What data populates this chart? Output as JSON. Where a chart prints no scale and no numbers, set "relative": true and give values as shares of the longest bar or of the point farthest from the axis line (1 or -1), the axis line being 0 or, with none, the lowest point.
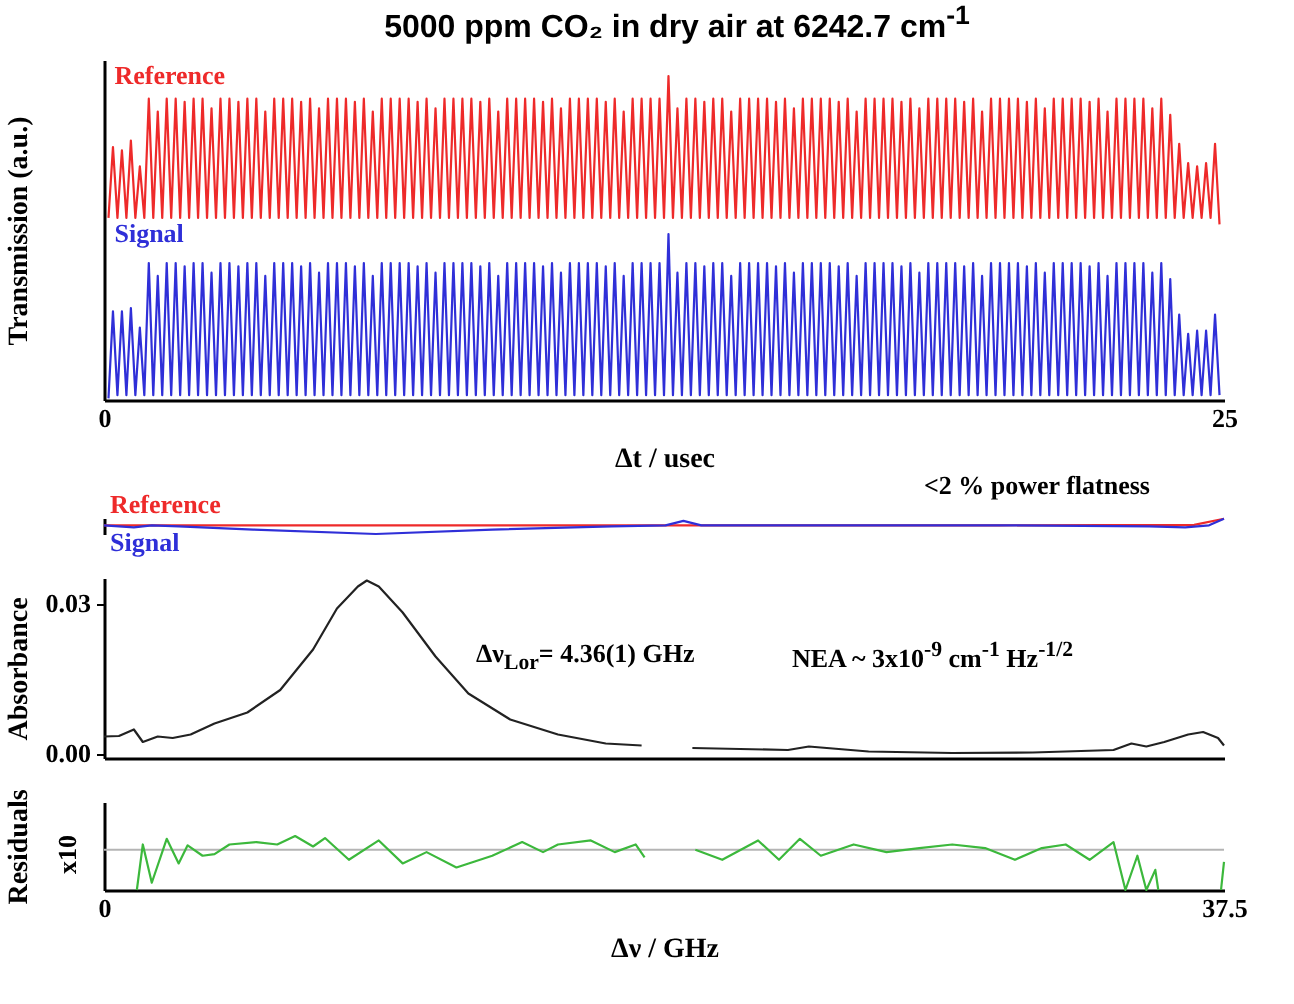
{
  "chart_data": [
    {
      "type": "line",
      "title": "5000 ppm CO₂ in dry air at 6242.7 cm$^{-1}$",
      "xlabel": "Δt / usec",
      "ylabel": "Transmission (a.u.)",
      "relative": true,
      "xlim": [
        0,
        25
      ],
      "xticks": [
        0,
        25
      ],
      "tick_labels": "x",
      "x": [
        0.1,
        0.2,
        0.3,
        0.4,
        0.5,
        0.6,
        0.7,
        0.8,
        0.9,
        1.0,
        1.1,
        1.2,
        1.3,
        1.4,
        1.5,
        1.6,
        1.7,
        1.8,
        1.9,
        2.0,
        2.1,
        2.2,
        2.3,
        2.4,
        2.5,
        2.6,
        2.7,
        2.8,
        2.9,
        3.0,
        3.1,
        3.2,
        3.3,
        3.4,
        3.5,
        3.6,
        3.7,
        3.8,
        3.9,
        4.0,
        4.1,
        4.2,
        4.3,
        4.4,
        4.5,
        4.6,
        4.7,
        4.8,
        4.9,
        5.0,
        5.1,
        5.2,
        5.3,
        5.4,
        5.5,
        5.6,
        5.7,
        5.8,
        5.9,
        6.0,
        6.1,
        6.2,
        6.3,
        6.4,
        6.5,
        6.6,
        6.7,
        6.8,
        6.9,
        7.0,
        7.1,
        7.2,
        7.3,
        7.4,
        7.5,
        7.6,
        7.7,
        7.8,
        7.9,
        8.0,
        8.1,
        8.2,
        8.3,
        8.4,
        8.5,
        8.6,
        8.7,
        8.8,
        8.9,
        9.0,
        9.1,
        9.2,
        9.3,
        9.4,
        9.5,
        9.6,
        9.7,
        9.8,
        9.9,
        10.0,
        10.1,
        10.2,
        10.3,
        10.4,
        10.5,
        10.6,
        10.7,
        10.8,
        10.9,
        11.0,
        11.1,
        11.2,
        11.3,
        11.4,
        11.5,
        11.6,
        11.7,
        11.8,
        11.9,
        12.0,
        12.1,
        12.2,
        12.3,
        12.4,
        12.5,
        12.6,
        12.7,
        12.8,
        12.9,
        13.0,
        13.1,
        13.2,
        13.3,
        13.4,
        13.5,
        13.6,
        13.7,
        13.8,
        13.9,
        14.0,
        14.1,
        14.2,
        14.3,
        14.4,
        14.5,
        14.6,
        14.7,
        14.8,
        14.9,
        15.0,
        15.1,
        15.2,
        15.3,
        15.4,
        15.5,
        15.6,
        15.7,
        15.8,
        15.9,
        16.0,
        16.1,
        16.2,
        16.3,
        16.4,
        16.5,
        16.6,
        16.7,
        16.8,
        16.9,
        17.0,
        17.1,
        17.2,
        17.3,
        17.4,
        17.5,
        17.6,
        17.7,
        17.8,
        17.9,
        18.0,
        18.1,
        18.2,
        18.3,
        18.4,
        18.5,
        18.6,
        18.7,
        18.8,
        18.9,
        19.0,
        19.1,
        19.2,
        19.3,
        19.4,
        19.5,
        19.6,
        19.7,
        19.8,
        19.9,
        20.0,
        20.1,
        20.2,
        20.3,
        20.4,
        20.5,
        20.6,
        20.7,
        20.8,
        20.9,
        21.0,
        21.1,
        21.2,
        21.3,
        21.4,
        21.5,
        21.6,
        21.7,
        21.8,
        21.9,
        22.0,
        22.1,
        22.2,
        22.3,
        22.4,
        22.5,
        22.6,
        22.7,
        22.8,
        22.9,
        23.0,
        23.1,
        23.2,
        23.3,
        23.4,
        23.5,
        23.6,
        23.7,
        23.8,
        23.9,
        24.0,
        24.1,
        24.2,
        24.3,
        24.4,
        24.5,
        24.6,
        24.7,
        24.8,
        24.9
      ],
      "series": [
        {
          "name": "Reference",
          "color": "#ee2a2a",
          "values": [
            0.56,
            0.78,
            0.56,
            0.77,
            0.56,
            0.8,
            0.56,
            0.72,
            0.56,
            0.93,
            0.56,
            0.89,
            0.56,
            0.93,
            0.56,
            0.93,
            0.56,
            0.92,
            0.56,
            0.93,
            0.56,
            0.93,
            0.56,
            0.9,
            0.56,
            0.93,
            0.56,
            0.93,
            0.56,
            0.92,
            0.56,
            0.93,
            0.56,
            0.93,
            0.56,
            0.89,
            0.56,
            0.93,
            0.56,
            0.93,
            0.56,
            0.93,
            0.56,
            0.92,
            0.56,
            0.93,
            0.56,
            0.9,
            0.56,
            0.93,
            0.56,
            0.93,
            0.56,
            0.93,
            0.56,
            0.92,
            0.56,
            0.93,
            0.56,
            0.89,
            0.56,
            0.93,
            0.56,
            0.93,
            0.56,
            0.93,
            0.56,
            0.93,
            0.56,
            0.92,
            0.56,
            0.93,
            0.56,
            0.9,
            0.56,
            0.93,
            0.56,
            0.93,
            0.56,
            0.93,
            0.56,
            0.93,
            0.56,
            0.92,
            0.56,
            0.93,
            0.56,
            0.89,
            0.56,
            0.93,
            0.56,
            0.93,
            0.56,
            0.93,
            0.56,
            0.93,
            0.56,
            0.92,
            0.56,
            0.93,
            0.56,
            0.9,
            0.56,
            0.93,
            0.56,
            0.93,
            0.56,
            0.93,
            0.56,
            0.93,
            0.56,
            0.92,
            0.56,
            0.93,
            0.56,
            0.89,
            0.56,
            0.93,
            0.56,
            0.93,
            0.56,
            0.93,
            0.56,
            0.93,
            0.56,
            1.0,
            0.56,
            0.9,
            0.56,
            0.93,
            0.56,
            0.93,
            0.56,
            0.92,
            0.56,
            0.93,
            0.56,
            0.93,
            0.56,
            0.89,
            0.56,
            0.93,
            0.56,
            0.93,
            0.56,
            0.93,
            0.56,
            0.93,
            0.56,
            0.92,
            0.56,
            0.93,
            0.56,
            0.9,
            0.56,
            0.93,
            0.56,
            0.93,
            0.56,
            0.93,
            0.56,
            0.93,
            0.56,
            0.92,
            0.56,
            0.93,
            0.56,
            0.89,
            0.56,
            0.93,
            0.56,
            0.93,
            0.56,
            0.93,
            0.56,
            0.93,
            0.56,
            0.92,
            0.56,
            0.93,
            0.56,
            0.9,
            0.56,
            0.93,
            0.56,
            0.93,
            0.56,
            0.93,
            0.56,
            0.93,
            0.56,
            0.92,
            0.56,
            0.93,
            0.56,
            0.89,
            0.56,
            0.93,
            0.56,
            0.93,
            0.56,
            0.93,
            0.56,
            0.93,
            0.56,
            0.92,
            0.56,
            0.93,
            0.56,
            0.9,
            0.56,
            0.93,
            0.56,
            0.93,
            0.56,
            0.93,
            0.56,
            0.93,
            0.56,
            0.92,
            0.56,
            0.93,
            0.56,
            0.89,
            0.56,
            0.93,
            0.56,
            0.93,
            0.56,
            0.93,
            0.56,
            0.93,
            0.56,
            0.9,
            0.56,
            0.93,
            0.56,
            0.88,
            0.56,
            0.79,
            0.56,
            0.73,
            0.56,
            0.72,
            0.56,
            0.73,
            0.56,
            0.79,
            0.54
          ]
        },
        {
          "name": "Signal",
          "color": "#2f2fd8",
          "values": [
            0.0,
            0.27,
            0.01,
            0.27,
            0.01,
            0.28,
            0.01,
            0.22,
            0.01,
            0.42,
            0.01,
            0.38,
            0.01,
            0.42,
            0.01,
            0.42,
            0.01,
            0.41,
            0.01,
            0.42,
            0.01,
            0.42,
            0.01,
            0.39,
            0.01,
            0.42,
            0.01,
            0.42,
            0.01,
            0.41,
            0.01,
            0.42,
            0.01,
            0.42,
            0.01,
            0.38,
            0.01,
            0.42,
            0.01,
            0.42,
            0.01,
            0.42,
            0.01,
            0.41,
            0.01,
            0.42,
            0.01,
            0.39,
            0.01,
            0.42,
            0.01,
            0.42,
            0.01,
            0.42,
            0.01,
            0.41,
            0.01,
            0.42,
            0.01,
            0.38,
            0.01,
            0.42,
            0.01,
            0.42,
            0.01,
            0.42,
            0.01,
            0.42,
            0.01,
            0.41,
            0.01,
            0.42,
            0.01,
            0.39,
            0.01,
            0.42,
            0.01,
            0.42,
            0.01,
            0.42,
            0.01,
            0.42,
            0.01,
            0.41,
            0.01,
            0.42,
            0.01,
            0.38,
            0.01,
            0.42,
            0.01,
            0.42,
            0.01,
            0.42,
            0.01,
            0.42,
            0.01,
            0.41,
            0.01,
            0.42,
            0.01,
            0.39,
            0.01,
            0.42,
            0.01,
            0.42,
            0.01,
            0.42,
            0.01,
            0.42,
            0.01,
            0.41,
            0.01,
            0.42,
            0.01,
            0.38,
            0.01,
            0.42,
            0.01,
            0.42,
            0.01,
            0.42,
            0.01,
            0.42,
            0.01,
            0.51,
            0.01,
            0.39,
            0.01,
            0.42,
            0.01,
            0.42,
            0.01,
            0.41,
            0.01,
            0.42,
            0.01,
            0.42,
            0.01,
            0.38,
            0.01,
            0.42,
            0.01,
            0.42,
            0.01,
            0.42,
            0.01,
            0.42,
            0.01,
            0.41,
            0.01,
            0.42,
            0.01,
            0.39,
            0.01,
            0.42,
            0.01,
            0.42,
            0.01,
            0.42,
            0.01,
            0.42,
            0.01,
            0.41,
            0.01,
            0.42,
            0.01,
            0.38,
            0.01,
            0.42,
            0.01,
            0.42,
            0.01,
            0.42,
            0.01,
            0.42,
            0.01,
            0.41,
            0.01,
            0.42,
            0.01,
            0.39,
            0.01,
            0.42,
            0.01,
            0.42,
            0.01,
            0.42,
            0.01,
            0.42,
            0.01,
            0.41,
            0.01,
            0.42,
            0.01,
            0.38,
            0.01,
            0.42,
            0.01,
            0.42,
            0.01,
            0.42,
            0.01,
            0.42,
            0.01,
            0.41,
            0.01,
            0.42,
            0.01,
            0.39,
            0.01,
            0.42,
            0.01,
            0.42,
            0.01,
            0.42,
            0.01,
            0.42,
            0.01,
            0.41,
            0.01,
            0.42,
            0.01,
            0.38,
            0.01,
            0.42,
            0.01,
            0.42,
            0.01,
            0.42,
            0.01,
            0.42,
            0.01,
            0.39,
            0.01,
            0.42,
            0.01,
            0.37,
            0.01,
            0.26,
            0.01,
            0.2,
            0.01,
            0.21,
            0.01,
            0.21,
            0.01,
            0.26,
            0.01
          ]
        }
      ]
    },
    {
      "type": "line",
      "relative": true,
      "xlim": [
        0,
        37.5
      ],
      "tick_labels": false,
      "annotations": [
        "<2 % power flatness"
      ],
      "series": [
        {
          "name": "Reference",
          "color": "#ee2a2a",
          "x": [
            0,
            10,
            20,
            30,
            36.5,
            37.5
          ],
          "values": [
            0.57,
            0.57,
            0.57,
            0.57,
            0.6,
            1.0
          ]
        },
        {
          "name": "Signal",
          "color": "#2f2fd8",
          "x": [
            0,
            1.0,
            1.6,
            2.5,
            5,
            9.1,
            13,
            17,
            18.8,
            19.4,
            20,
            30,
            35,
            36.2,
            37.0,
            37.5
          ],
          "values": [
            0.57,
            0.43,
            0.57,
            0.5,
            0.29,
            0.0,
            0.29,
            0.5,
            0.57,
            0.86,
            0.57,
            0.57,
            0.5,
            0.43,
            0.57,
            1.0
          ]
        }
      ]
    },
    {
      "type": "line",
      "ylabel": "Absorbance",
      "xlim": [
        0,
        37.5
      ],
      "ylim": [
        -0.001,
        0.035
      ],
      "yticks": [
        {
          "value": 0,
          "label": "0.00"
        },
        {
          "value": 0.03,
          "label": "0.03"
        }
      ],
      "tick_labels": "y",
      "color": "#222222",
      "annotations": [
        "Δν$_{Lor}$= 4.36(1) GHz",
        "NEA ~ 3x10$^{-9}$ cm$^{-1}$ Hz$^{-1/2}$"
      ],
      "x": [
        0,
        0.5,
        1.0,
        1.3,
        1.8,
        2.3,
        2.9,
        3.7,
        4.8,
        5.9,
        7.0,
        7.8,
        8.5,
        8.8,
        9.2,
        10.0,
        11.1,
        12.2,
        13.6,
        15.2,
        16.8,
        18.0,
        18.9,
        19.7,
        22.9,
        23.6,
        25.6,
        28.4,
        31.1,
        33.8,
        34.4,
        34.9,
        35.5,
        36.3,
        36.8,
        37.3,
        37.5
      ],
      "values": [
        0.0033,
        0.0034,
        0.0047,
        0.0022,
        0.0033,
        0.003,
        0.0037,
        0.0059,
        0.0081,
        0.0126,
        0.0207,
        0.0289,
        0.0333,
        0.0345,
        0.0333,
        0.0281,
        0.0193,
        0.0119,
        0.0067,
        0.0037,
        0.0019,
        0.0015,
        null,
        0.001,
        0.0006,
        0.0013,
        0.0003,
        0.0,
        0.0001,
        0.0006,
        0.0019,
        0.0013,
        0.0022,
        0.0037,
        0.0042,
        0.003,
        0.0015
      ]
    },
    {
      "type": "line",
      "relative": true,
      "xlabel": "Δν / GHz",
      "ylabel": "Residuals",
      "xlim": [
        0,
        37.5
      ],
      "xticks": [
        0,
        37.5
      ],
      "tick_labels": "x",
      "color": "#3cb83c",
      "annotations": [
        "x10"
      ],
      "ref_lines": [
        {
          "axis": "y",
          "value": 0,
          "color": "#b4b4b4"
        }
      ],
      "x": [
        1.1,
        1.3,
        1.6,
        2.1,
        2.5,
        2.8,
        3.3,
        3.7,
        4.2,
        5.1,
        5.8,
        6.4,
        7.0,
        7.4,
        8.2,
        9.2,
        10.0,
        10.8,
        11.8,
        13.0,
        14.0,
        14.7,
        15.2,
        16.3,
        17.1,
        17.8,
        18.1,
        18.9,
        19.8,
        20.7,
        21.9,
        22.6,
        23.3,
        24.0,
        25.1,
        26.2,
        27.3,
        28.4,
        29.5,
        30.5,
        31.4,
        32.2,
        33.0,
        33.8,
        34.2,
        34.6,
        34.9,
        35.2,
        35.3,
        35.4,
        37.4,
        37.5
      ],
      "values": [
        -1.0,
        0.13,
        -0.82,
        0.27,
        -0.34,
        0.11,
        -0.15,
        -0.11,
        0.13,
        0.19,
        0.13,
        0.34,
        0.08,
        0.29,
        -0.25,
        0.23,
        -0.34,
        -0.06,
        -0.44,
        -0.15,
        0.19,
        -0.06,
        0.13,
        0.23,
        -0.06,
        0.13,
        -0.19,
        null,
        0,
        -0.25,
        0.23,
        -0.25,
        0.27,
        -0.15,
        0.13,
        -0.06,
        0.04,
        0.13,
        0.04,
        -0.25,
        0.04,
        0.13,
        -0.25,
        0.19,
        -1.0,
        -0.15,
        -1.0,
        -0.5,
        -1.0,
        null,
        -1.0,
        -0.3
      ]
    }
  ]
}
